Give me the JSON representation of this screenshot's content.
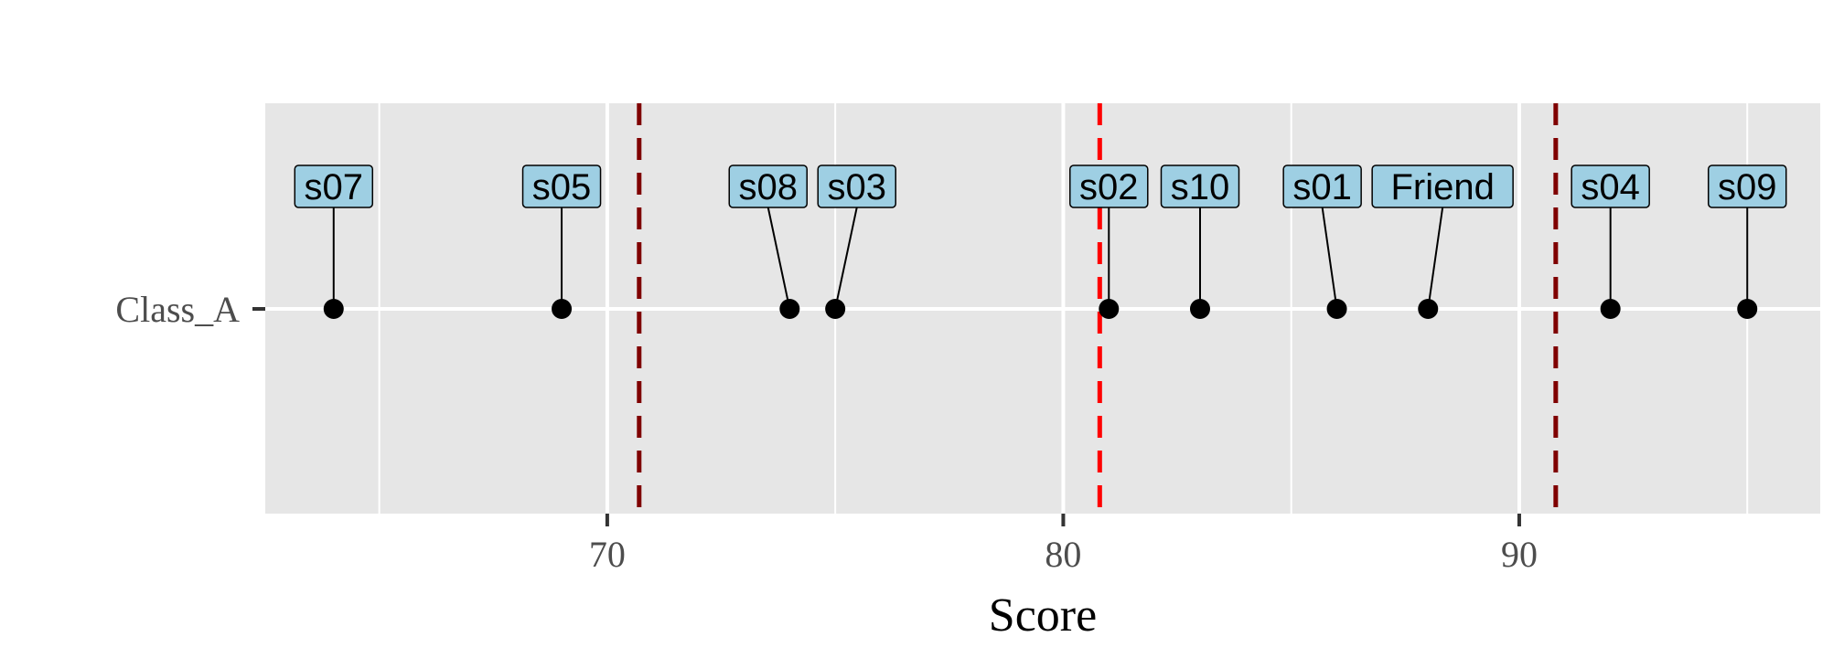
{
  "chart_data": {
    "type": "scatter",
    "xlabel": "Score",
    "ylabel": "",
    "xlim": [
      62.5,
      96.6
    ],
    "x_ticks": [
      70,
      80,
      90
    ],
    "x_minor": [
      65,
      75,
      85,
      95
    ],
    "categories": [
      "Class_A"
    ],
    "grid": true,
    "reference_lines": [
      {
        "value": 70.7,
        "style": "dashed",
        "color": "#7f0000"
      },
      {
        "value": 80.8,
        "style": "dashed",
        "color": "#ff0000"
      },
      {
        "value": 90.8,
        "style": "dashed",
        "color": "#7f0000"
      }
    ],
    "points": [
      {
        "label": "s07",
        "x": 64.0,
        "category": "Class_A"
      },
      {
        "label": "s05",
        "x": 69.0,
        "category": "Class_A"
      },
      {
        "label": "s08",
        "x": 74.0,
        "category": "Class_A"
      },
      {
        "label": "s03",
        "x": 75.0,
        "category": "Class_A"
      },
      {
        "label": "s02",
        "x": 81.0,
        "category": "Class_A"
      },
      {
        "label": "s10",
        "x": 83.0,
        "category": "Class_A"
      },
      {
        "label": "s01",
        "x": 86.0,
        "category": "Class_A"
      },
      {
        "label": "Friend",
        "x": 88.0,
        "category": "Class_A"
      },
      {
        "label": "s04",
        "x": 92.0,
        "category": "Class_A"
      },
      {
        "label": "s09",
        "x": 95.0,
        "category": "Class_A"
      }
    ],
    "colors": {
      "panel": "#e6e6e6",
      "grid": "#ffffff",
      "label_fill": "#9ecfe3",
      "point": "#000000"
    }
  }
}
